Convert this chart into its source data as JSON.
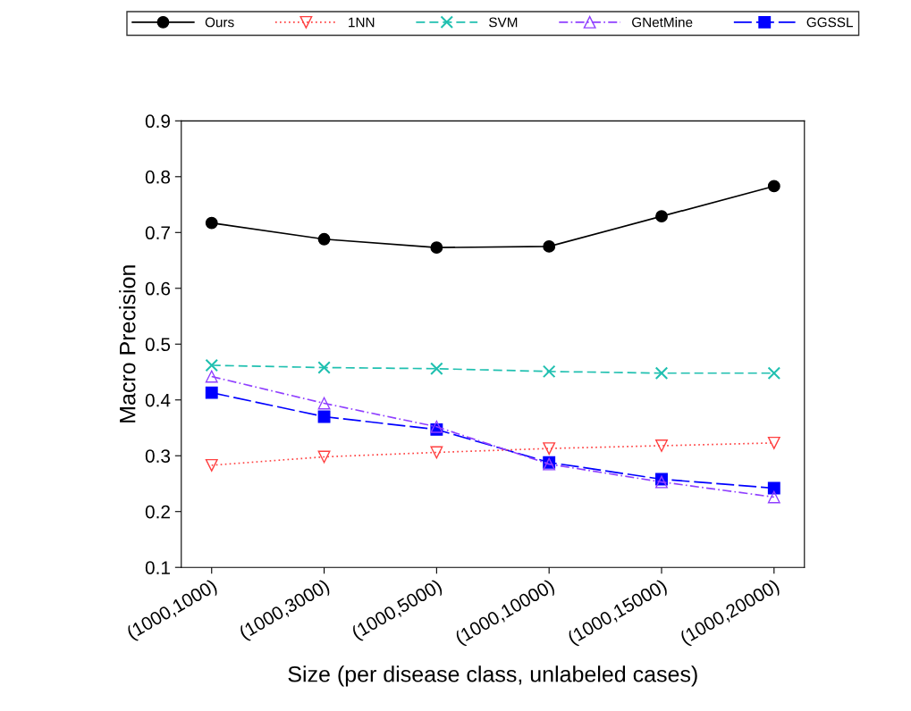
{
  "chart_data": {
    "type": "line",
    "xlabel": "Size (per disease class, unlabeled cases)",
    "ylabel": "Macro Precision",
    "categories": [
      "(1000,1000)",
      "(1000,3000)",
      "(1000,5000)",
      "(1000,10000)",
      "(1000,15000)",
      "(1000,20000)"
    ],
    "ylim": [
      0.1,
      0.9
    ],
    "yticks": [
      0.1,
      0.2,
      0.3,
      0.4,
      0.5,
      0.6,
      0.7,
      0.8,
      0.9
    ],
    "grid": false,
    "legend": "top",
    "series": [
      {
        "name": "Ours",
        "color": "#000000",
        "marker": "circle",
        "line_style": "solid",
        "values": [
          0.717,
          0.688,
          0.673,
          0.675,
          0.729,
          0.783
        ]
      },
      {
        "name": "1NN",
        "color": "#ff4040",
        "marker": "triangle_down",
        "line_style": "dotted",
        "values": [
          0.283,
          0.298,
          0.306,
          0.313,
          0.318,
          0.323
        ]
      },
      {
        "name": "SVM",
        "color": "#20c0b0",
        "marker": "cross",
        "line_style": "dashed",
        "values": [
          0.462,
          0.458,
          0.456,
          0.451,
          0.448,
          0.448
        ]
      },
      {
        "name": "GNetMine",
        "color": "#9040ff",
        "marker": "triangle",
        "line_style": "dashdot",
        "values": [
          0.442,
          0.394,
          0.352,
          0.285,
          0.253,
          0.226
        ]
      },
      {
        "name": "GGSSL",
        "color": "#0000ff",
        "marker": "square",
        "line_style": "longdash",
        "values": [
          0.413,
          0.37,
          0.347,
          0.288,
          0.258,
          0.242
        ]
      }
    ]
  }
}
